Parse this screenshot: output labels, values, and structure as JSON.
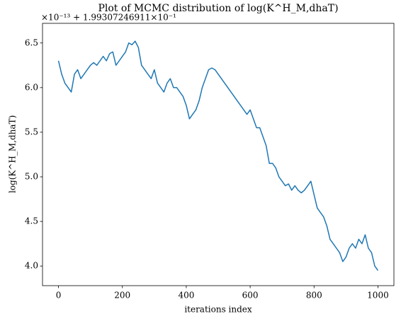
{
  "chart_data": {
    "type": "line",
    "title": "Plot of MCMC distribution of log(K^H_M,dhaT)",
    "offset_text": "×10⁻¹³ + 1.99307246911×10⁻¹",
    "xlabel": "iterations index",
    "ylabel": "log(K^H_M,dhaT)",
    "xlim": [
      -50,
      1050
    ],
    "ylim": [
      3.78,
      6.72
    ],
    "xticks": [
      0,
      200,
      400,
      600,
      800,
      1000
    ],
    "yticks": [
      {
        "value": 4,
        "label": "4.0"
      },
      4.5,
      {
        "value": 5,
        "label": "5.0"
      },
      5.5,
      {
        "value": 6,
        "label": "6.0"
      },
      6.5
    ],
    "grid": false,
    "x": [
      0,
      10,
      20,
      30,
      40,
      50,
      60,
      70,
      80,
      90,
      100,
      110,
      120,
      130,
      140,
      150,
      160,
      170,
      180,
      190,
      200,
      210,
      220,
      230,
      240,
      250,
      260,
      270,
      280,
      290,
      300,
      310,
      320,
      330,
      340,
      350,
      360,
      370,
      380,
      390,
      400,
      410,
      420,
      430,
      440,
      450,
      460,
      470,
      480,
      490,
      500,
      510,
      520,
      530,
      540,
      550,
      560,
      570,
      580,
      590,
      600,
      610,
      620,
      630,
      640,
      650,
      660,
      670,
      680,
      690,
      700,
      710,
      720,
      730,
      740,
      750,
      760,
      770,
      780,
      790,
      800,
      810,
      820,
      830,
      840,
      850,
      860,
      870,
      880,
      890,
      900,
      910,
      920,
      930,
      940,
      950,
      960,
      970,
      980,
      990,
      1000
    ],
    "series": [
      {
        "color": "#1f77b4",
        "values": [
          6.3,
          6.15,
          6.05,
          6.0,
          5.95,
          6.15,
          6.2,
          6.1,
          6.15,
          6.2,
          6.25,
          6.28,
          6.25,
          6.3,
          6.35,
          6.3,
          6.38,
          6.4,
          6.25,
          6.3,
          6.35,
          6.4,
          6.5,
          6.48,
          6.52,
          6.45,
          6.25,
          6.2,
          6.15,
          6.1,
          6.2,
          6.05,
          6.0,
          5.95,
          6.05,
          6.1,
          6.0,
          6.0,
          5.95,
          5.9,
          5.8,
          5.65,
          5.7,
          5.75,
          5.85,
          6.0,
          6.1,
          6.2,
          6.22,
          6.2,
          6.15,
          6.1,
          6.05,
          6.0,
          5.95,
          5.9,
          5.85,
          5.8,
          5.75,
          5.7,
          5.75,
          5.65,
          5.55,
          5.55,
          5.45,
          5.35,
          5.15,
          5.15,
          5.1,
          5.0,
          4.95,
          4.9,
          4.92,
          4.85,
          4.9,
          4.85,
          4.82,
          4.85,
          4.9,
          4.95,
          4.8,
          4.65,
          4.6,
          4.55,
          4.45,
          4.3,
          4.25,
          4.2,
          4.15,
          4.05,
          4.1,
          4.2,
          4.25,
          4.2,
          4.3,
          4.25,
          4.35,
          4.2,
          4.15,
          4.0,
          3.95
        ]
      }
    ]
  }
}
